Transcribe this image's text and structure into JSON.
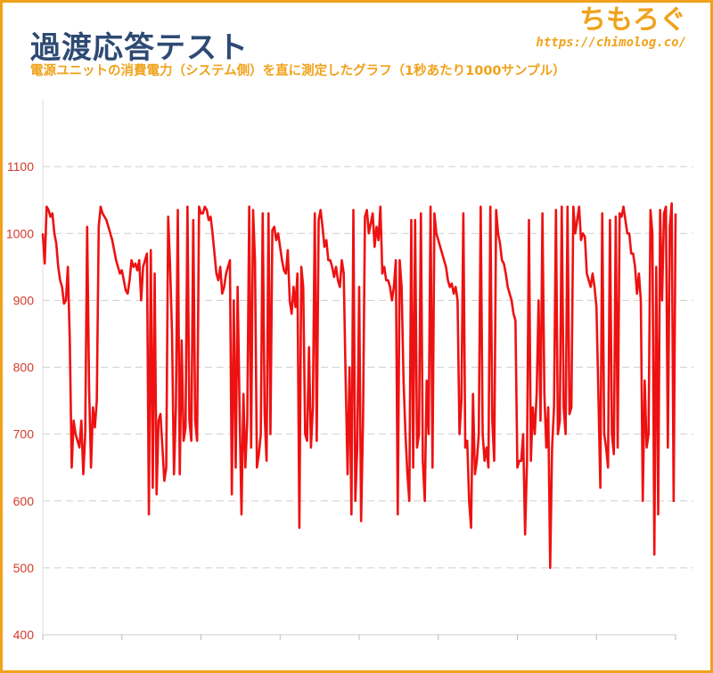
{
  "header": {
    "title": "過渡応答テスト",
    "subtitle": "電源ユニットの消費電力（システム側）を直に測定したグラフ（1秒あたり1000サンプル）"
  },
  "brand": {
    "name": "ちもろぐ",
    "url": "https://chimolog.co/"
  },
  "colors": {
    "accent": "#f0a21a",
    "title": "#2e4a74",
    "line": "#ee1111",
    "tick": "#d33a2c"
  },
  "chart_data": {
    "type": "line",
    "title": "過渡応答テスト",
    "subtitle": "電源ユニットの消費電力（システム側）を直に測定したグラフ（1秒あたり1000サンプル）",
    "xlabel": "",
    "ylabel": "",
    "ylim": [
      400,
      1200
    ],
    "yticks": [
      "400",
      "500",
      "600",
      "700",
      "800",
      "900",
      "1000",
      "1100"
    ],
    "grid": "horizontal dashed",
    "legend": "none",
    "series": [
      {
        "values": [
          1000,
          955,
          1040,
          1035,
          1025,
          1030,
          1000,
          985,
          950,
          930,
          920,
          895,
          900,
          950,
          840,
          650,
          720,
          700,
          690,
          680,
          720,
          640,
          700,
          1010,
          770,
          650,
          740,
          710,
          750,
          1010,
          1040,
          1030,
          1025,
          1020,
          1010,
          1000,
          990,
          975,
          960,
          950,
          940,
          945,
          930,
          915,
          910,
          930,
          960,
          950,
          955,
          945,
          960,
          900,
          950,
          960,
          970,
          580,
          975,
          620,
          940,
          610,
          720,
          730,
          680,
          630,
          650,
          1025,
          950,
          850,
          640,
          740,
          1035,
          640,
          840,
          690,
          710,
          1040,
          720,
          690,
          1020,
          720,
          690,
          1040,
          1030,
          1030,
          1040,
          1035,
          1020,
          1025,
          1000,
          970,
          940,
          930,
          950,
          910,
          920,
          940,
          950,
          960,
          610,
          900,
          650,
          920,
          740,
          580,
          760,
          650,
          720,
          1040,
          680,
          1035,
          960,
          650,
          670,
          700,
          1030,
          730,
          660,
          1030,
          700,
          1005,
          1010,
          990,
          1000,
          980,
          960,
          945,
          940,
          975,
          900,
          880,
          920,
          890,
          940,
          560,
          950,
          920,
          700,
          690,
          830,
          680,
          740,
          1030,
          690,
          1020,
          1035,
          1010,
          980,
          990,
          960,
          960,
          950,
          935,
          950,
          930,
          920,
          960,
          940,
          780,
          640,
          800,
          580,
          1035,
          600,
          680,
          920,
          570,
          720,
          1025,
          1035,
          1000,
          1015,
          1030,
          980,
          1010,
          990,
          1040,
          940,
          950,
          930,
          930,
          920,
          900,
          920,
          960,
          580,
          960,
          920,
          780,
          700,
          640,
          600,
          1020,
          650,
          1020,
          680,
          700,
          1030,
          660,
          600,
          780,
          700,
          1040,
          650,
          1030,
          1000,
          990,
          980,
          970,
          960,
          950,
          930,
          920,
          925,
          910,
          920,
          900,
          700,
          750,
          1030,
          680,
          690,
          600,
          560,
          760,
          640,
          660,
          700,
          1040,
          700,
          660,
          680,
          650,
          1040,
          720,
          660,
          1035,
          1000,
          985,
          960,
          955,
          940,
          920,
          910,
          900,
          880,
          870,
          650,
          660,
          660,
          700,
          550,
          660,
          1020,
          660,
          740,
          700,
          760,
          900,
          720,
          1030,
          760,
          680,
          740,
          500,
          680,
          740,
          1035,
          700,
          720,
          1040,
          740,
          700,
          1040,
          730,
          740,
          1040,
          1000,
          1020,
          1040,
          990,
          1000,
          995,
          940,
          930,
          920,
          940,
          920,
          890,
          760,
          620,
          1030,
          700,
          680,
          650,
          1020,
          700,
          670,
          1025,
          680,
          1030,
          1025,
          1040,
          1020,
          1000,
          1000,
          970,
          970,
          950,
          910,
          940,
          900,
          600,
          780,
          680,
          700,
          1035,
          1000,
          520,
          950,
          580,
          1035,
          900,
          1030,
          1040,
          680,
          1010,
          1045,
          600,
          1030
        ]
      }
    ]
  }
}
